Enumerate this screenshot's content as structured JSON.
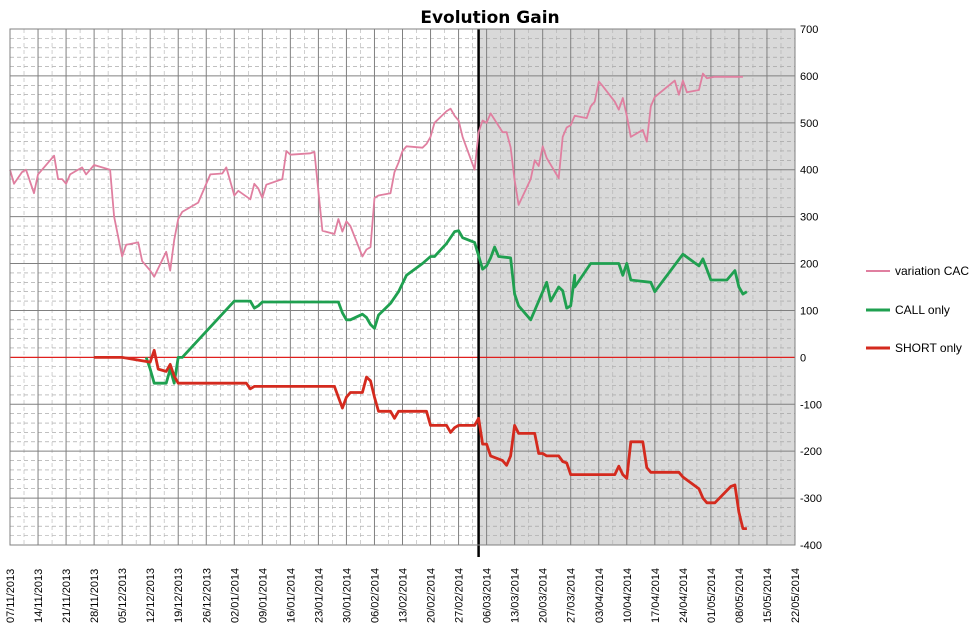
{
  "chart_data": {
    "type": "line",
    "title": "Evolution Gain",
    "xlabel": "",
    "ylabel": "",
    "ylim": [
      -400,
      700
    ],
    "y_ticks": [
      700,
      600,
      500,
      400,
      300,
      200,
      100,
      0,
      -100,
      -200,
      -300,
      -400
    ],
    "y_axis_side": "right",
    "x_start": "2013-11-07",
    "x_end": "2014-05-22",
    "x_tick_labels": [
      "07/11/2013",
      "14/11/2013",
      "21/11/2013",
      "28/11/2013",
      "05/12/2013",
      "12/12/2013",
      "19/12/2013",
      "26/12/2013",
      "02/01/2014",
      "09/01/2014",
      "16/01/2014",
      "23/01/2014",
      "30/01/2014",
      "06/02/2014",
      "13/02/2014",
      "20/02/2014",
      "27/02/2014",
      "06/03/2014",
      "13/03/2014",
      "20/03/2014",
      "27/03/2014",
      "03/04/2014",
      "10/04/2014",
      "17/04/2014",
      "24/04/2014",
      "01/05/2014",
      "08/05/2014",
      "15/05/2014",
      "22/05/2014"
    ],
    "grid": true,
    "legend_position": "right",
    "vertical_marker": "2014-03-04",
    "shaded_from": "2014-03-04",
    "shade_color": "#d9d9d9",
    "zero_line_color": "#e0201e",
    "series": [
      {
        "name": "variation CAC",
        "color": "#e07fa0",
        "points": [
          [
            "2013-11-07",
            400
          ],
          [
            "2013-11-08",
            370
          ],
          [
            "2013-11-10",
            395
          ],
          [
            "2013-11-11",
            400
          ],
          [
            "2013-11-13",
            350
          ],
          [
            "2013-11-14",
            390
          ],
          [
            "2013-11-18",
            430
          ],
          [
            "2013-11-19",
            380
          ],
          [
            "2013-11-20",
            380
          ],
          [
            "2013-11-21",
            370
          ],
          [
            "2013-11-22",
            390
          ],
          [
            "2013-11-25",
            405
          ],
          [
            "2013-11-26",
            390
          ],
          [
            "2013-11-28",
            410
          ],
          [
            "2013-12-02",
            400
          ],
          [
            "2013-12-03",
            300
          ],
          [
            "2013-12-05",
            215
          ],
          [
            "2013-12-06",
            240
          ],
          [
            "2013-12-09",
            245
          ],
          [
            "2013-12-10",
            205
          ],
          [
            "2013-12-12",
            185
          ],
          [
            "2013-12-13",
            172
          ],
          [
            "2013-12-16",
            225
          ],
          [
            "2013-12-17",
            185
          ],
          [
            "2013-12-18",
            250
          ],
          [
            "2013-12-19",
            295
          ],
          [
            "2013-12-20",
            310
          ],
          [
            "2013-12-24",
            330
          ],
          [
            "2013-12-27",
            390
          ],
          [
            "2013-12-30",
            392
          ],
          [
            "2013-12-31",
            405
          ],
          [
            "2014-01-02",
            345
          ],
          [
            "2014-01-03",
            355
          ],
          [
            "2014-01-06",
            337
          ],
          [
            "2014-01-07",
            370
          ],
          [
            "2014-01-08",
            360
          ],
          [
            "2014-01-09",
            340
          ],
          [
            "2014-01-10",
            368
          ],
          [
            "2014-01-14",
            380
          ],
          [
            "2014-01-15",
            440
          ],
          [
            "2014-01-16",
            432
          ],
          [
            "2014-01-21",
            435
          ],
          [
            "2014-01-22",
            438
          ],
          [
            "2014-01-24",
            270
          ],
          [
            "2014-01-27",
            263
          ],
          [
            "2014-01-28",
            295
          ],
          [
            "2014-01-29",
            268
          ],
          [
            "2014-01-30",
            290
          ],
          [
            "2014-01-31",
            280
          ],
          [
            "2014-02-03",
            215
          ],
          [
            "2014-02-04",
            230
          ],
          [
            "2014-02-05",
            235
          ],
          [
            "2014-02-06",
            340
          ],
          [
            "2014-02-07",
            345
          ],
          [
            "2014-02-10",
            350
          ],
          [
            "2014-02-11",
            395
          ],
          [
            "2014-02-12",
            415
          ],
          [
            "2014-02-13",
            440
          ],
          [
            "2014-02-14",
            450
          ],
          [
            "2014-02-18",
            447
          ],
          [
            "2014-02-19",
            455
          ],
          [
            "2014-02-20",
            470
          ],
          [
            "2014-02-21",
            500
          ],
          [
            "2014-02-24",
            525
          ],
          [
            "2014-02-25",
            530
          ],
          [
            "2014-02-26",
            515
          ],
          [
            "2014-02-27",
            505
          ],
          [
            "2014-02-28",
            470
          ],
          [
            "2014-03-03",
            400
          ],
          [
            "2014-03-04",
            480
          ],
          [
            "2014-03-05",
            505
          ],
          [
            "2014-03-06",
            500
          ],
          [
            "2014-03-07",
            520
          ],
          [
            "2014-03-10",
            480
          ],
          [
            "2014-03-11",
            480
          ],
          [
            "2014-03-12",
            448
          ],
          [
            "2014-03-13",
            378
          ],
          [
            "2014-03-14",
            325
          ],
          [
            "2014-03-17",
            380
          ],
          [
            "2014-03-18",
            420
          ],
          [
            "2014-03-19",
            408
          ],
          [
            "2014-03-20",
            450
          ],
          [
            "2014-03-21",
            425
          ],
          [
            "2014-03-24",
            382
          ],
          [
            "2014-03-25",
            470
          ],
          [
            "2014-03-26",
            490
          ],
          [
            "2014-03-27",
            495
          ],
          [
            "2014-03-28",
            515
          ],
          [
            "2014-03-31",
            510
          ],
          [
            "2014-04-01",
            535
          ],
          [
            "2014-04-02",
            545
          ],
          [
            "2014-04-03",
            588
          ],
          [
            "2014-04-04",
            578
          ],
          [
            "2014-04-07",
            545
          ],
          [
            "2014-04-08",
            528
          ],
          [
            "2014-04-09",
            553
          ],
          [
            "2014-04-10",
            515
          ],
          [
            "2014-04-11",
            470
          ],
          [
            "2014-04-14",
            485
          ],
          [
            "2014-04-15",
            460
          ],
          [
            "2014-04-16",
            535
          ],
          [
            "2014-04-17",
            555
          ],
          [
            "2014-04-22",
            590
          ],
          [
            "2014-04-23",
            560
          ],
          [
            "2014-04-24",
            590
          ],
          [
            "2014-04-25",
            565
          ],
          [
            "2014-04-28",
            570
          ],
          [
            "2014-04-29",
            605
          ],
          [
            "2014-04-30",
            595
          ],
          [
            "2014-05-02",
            598
          ],
          [
            "2014-05-09",
            598
          ]
        ]
      },
      {
        "name": "CALL only",
        "color": "#1fa050",
        "points": [
          [
            "2013-12-11",
            0
          ],
          [
            "2013-12-12",
            -25
          ],
          [
            "2013-12-13",
            -55
          ],
          [
            "2013-12-16",
            -55
          ],
          [
            "2013-12-17",
            -25
          ],
          [
            "2013-12-18",
            -55
          ],
          [
            "2013-12-19",
            0
          ],
          [
            "2013-12-20",
            0
          ],
          [
            "2014-01-02",
            120
          ],
          [
            "2014-01-06",
            120
          ],
          [
            "2014-01-07",
            105
          ],
          [
            "2014-01-08",
            110
          ],
          [
            "2014-01-09",
            118
          ],
          [
            "2014-01-28",
            118
          ],
          [
            "2014-01-29",
            95
          ],
          [
            "2014-01-30",
            80
          ],
          [
            "2014-01-31",
            80
          ],
          [
            "2014-02-03",
            92
          ],
          [
            "2014-02-04",
            85
          ],
          [
            "2014-02-05",
            70
          ],
          [
            "2014-02-06",
            62
          ],
          [
            "2014-02-07",
            90
          ],
          [
            "2014-02-10",
            115
          ],
          [
            "2014-02-12",
            140
          ],
          [
            "2014-02-14",
            175
          ],
          [
            "2014-02-18",
            200
          ],
          [
            "2014-02-20",
            215
          ],
          [
            "2014-02-21",
            215
          ],
          [
            "2014-02-24",
            243
          ],
          [
            "2014-02-26",
            268
          ],
          [
            "2014-02-27",
            270
          ],
          [
            "2014-02-28",
            255
          ],
          [
            "2014-03-03",
            245
          ],
          [
            "2014-03-05",
            188
          ],
          [
            "2014-03-06",
            195
          ],
          [
            "2014-03-07",
            212
          ],
          [
            "2014-03-08",
            235
          ],
          [
            "2014-03-09",
            215
          ],
          [
            "2014-03-12",
            212
          ],
          [
            "2014-03-13",
            135
          ],
          [
            "2014-03-14",
            110
          ],
          [
            "2014-03-17",
            80
          ],
          [
            "2014-03-18",
            100
          ],
          [
            "2014-03-21",
            160
          ],
          [
            "2014-03-22",
            120
          ],
          [
            "2014-03-24",
            150
          ],
          [
            "2014-03-25",
            142
          ],
          [
            "2014-03-26",
            105
          ],
          [
            "2014-03-27",
            110
          ],
          [
            "2014-03-28",
            175
          ],
          [
            "2014-03-28",
            150
          ],
          [
            "2014-04-01",
            200
          ],
          [
            "2014-04-08",
            200
          ],
          [
            "2014-04-09",
            175
          ],
          [
            "2014-04-10",
            200
          ],
          [
            "2014-04-11",
            165
          ],
          [
            "2014-04-16",
            160
          ],
          [
            "2014-04-17",
            140
          ],
          [
            "2014-04-24",
            220
          ],
          [
            "2014-04-28",
            195
          ],
          [
            "2014-04-29",
            210
          ],
          [
            "2014-05-01",
            165
          ],
          [
            "2014-05-05",
            165
          ],
          [
            "2014-05-07",
            185
          ],
          [
            "2014-05-08",
            150
          ],
          [
            "2014-05-09",
            135
          ],
          [
            "2014-05-10",
            140
          ]
        ]
      },
      {
        "name": "SHORT only",
        "color": "#d42a1e",
        "points": [
          [
            "2013-11-28",
            0
          ],
          [
            "2013-12-05",
            0
          ],
          [
            "2013-12-12",
            -10
          ],
          [
            "2013-12-13",
            15
          ],
          [
            "2013-12-14",
            -25
          ],
          [
            "2013-12-16",
            -30
          ],
          [
            "2013-12-17",
            -15
          ],
          [
            "2013-12-18",
            -40
          ],
          [
            "2013-12-19",
            -55
          ],
          [
            "2013-12-20",
            -55
          ],
          [
            "2014-01-05",
            -55
          ],
          [
            "2014-01-06",
            -67
          ],
          [
            "2014-01-07",
            -62
          ],
          [
            "2014-01-27",
            -62
          ],
          [
            "2014-01-28",
            -85
          ],
          [
            "2014-01-29",
            -108
          ],
          [
            "2014-01-30",
            -85
          ],
          [
            "2014-01-31",
            -75
          ],
          [
            "2014-02-03",
            -75
          ],
          [
            "2014-02-04",
            -42
          ],
          [
            "2014-02-05",
            -50
          ],
          [
            "2014-02-06",
            -85
          ],
          [
            "2014-02-07",
            -115
          ],
          [
            "2014-02-10",
            -115
          ],
          [
            "2014-02-11",
            -130
          ],
          [
            "2014-02-12",
            -115
          ],
          [
            "2014-02-19",
            -115
          ],
          [
            "2014-02-20",
            -145
          ],
          [
            "2014-02-24",
            -145
          ],
          [
            "2014-02-25",
            -160
          ],
          [
            "2014-02-26",
            -150
          ],
          [
            "2014-02-27",
            -145
          ],
          [
            "2014-02-28",
            -145
          ],
          [
            "2014-03-03",
            -145
          ],
          [
            "2014-03-04",
            -130
          ],
          [
            "2014-03-05",
            -185
          ],
          [
            "2014-03-06",
            -185
          ],
          [
            "2014-03-07",
            -210
          ],
          [
            "2014-03-10",
            -220
          ],
          [
            "2014-03-11",
            -230
          ],
          [
            "2014-03-12",
            -210
          ],
          [
            "2014-03-13",
            -145
          ],
          [
            "2014-03-14",
            -162
          ],
          [
            "2014-03-18",
            -162
          ],
          [
            "2014-03-19",
            -205
          ],
          [
            "2014-03-20",
            -205
          ],
          [
            "2014-03-21",
            -210
          ],
          [
            "2014-03-24",
            -210
          ],
          [
            "2014-03-25",
            -222
          ],
          [
            "2014-03-26",
            -225
          ],
          [
            "2014-03-27",
            -250
          ],
          [
            "2014-04-07",
            -250
          ],
          [
            "2014-04-08",
            -232
          ],
          [
            "2014-04-09",
            -250
          ],
          [
            "2014-04-10",
            -258
          ],
          [
            "2014-04-11",
            -180
          ],
          [
            "2014-04-14",
            -180
          ],
          [
            "2014-04-15",
            -235
          ],
          [
            "2014-04-16",
            -245
          ],
          [
            "2014-04-23",
            -245
          ],
          [
            "2014-04-24",
            -255
          ],
          [
            "2014-04-28",
            -280
          ],
          [
            "2014-04-29",
            -300
          ],
          [
            "2014-04-30",
            -310
          ],
          [
            "2014-05-02",
            -310
          ],
          [
            "2014-05-06",
            -275
          ],
          [
            "2014-05-07",
            -272
          ],
          [
            "2014-05-08",
            -330
          ],
          [
            "2014-05-09",
            -365
          ],
          [
            "2014-05-10",
            -365
          ]
        ]
      }
    ]
  }
}
